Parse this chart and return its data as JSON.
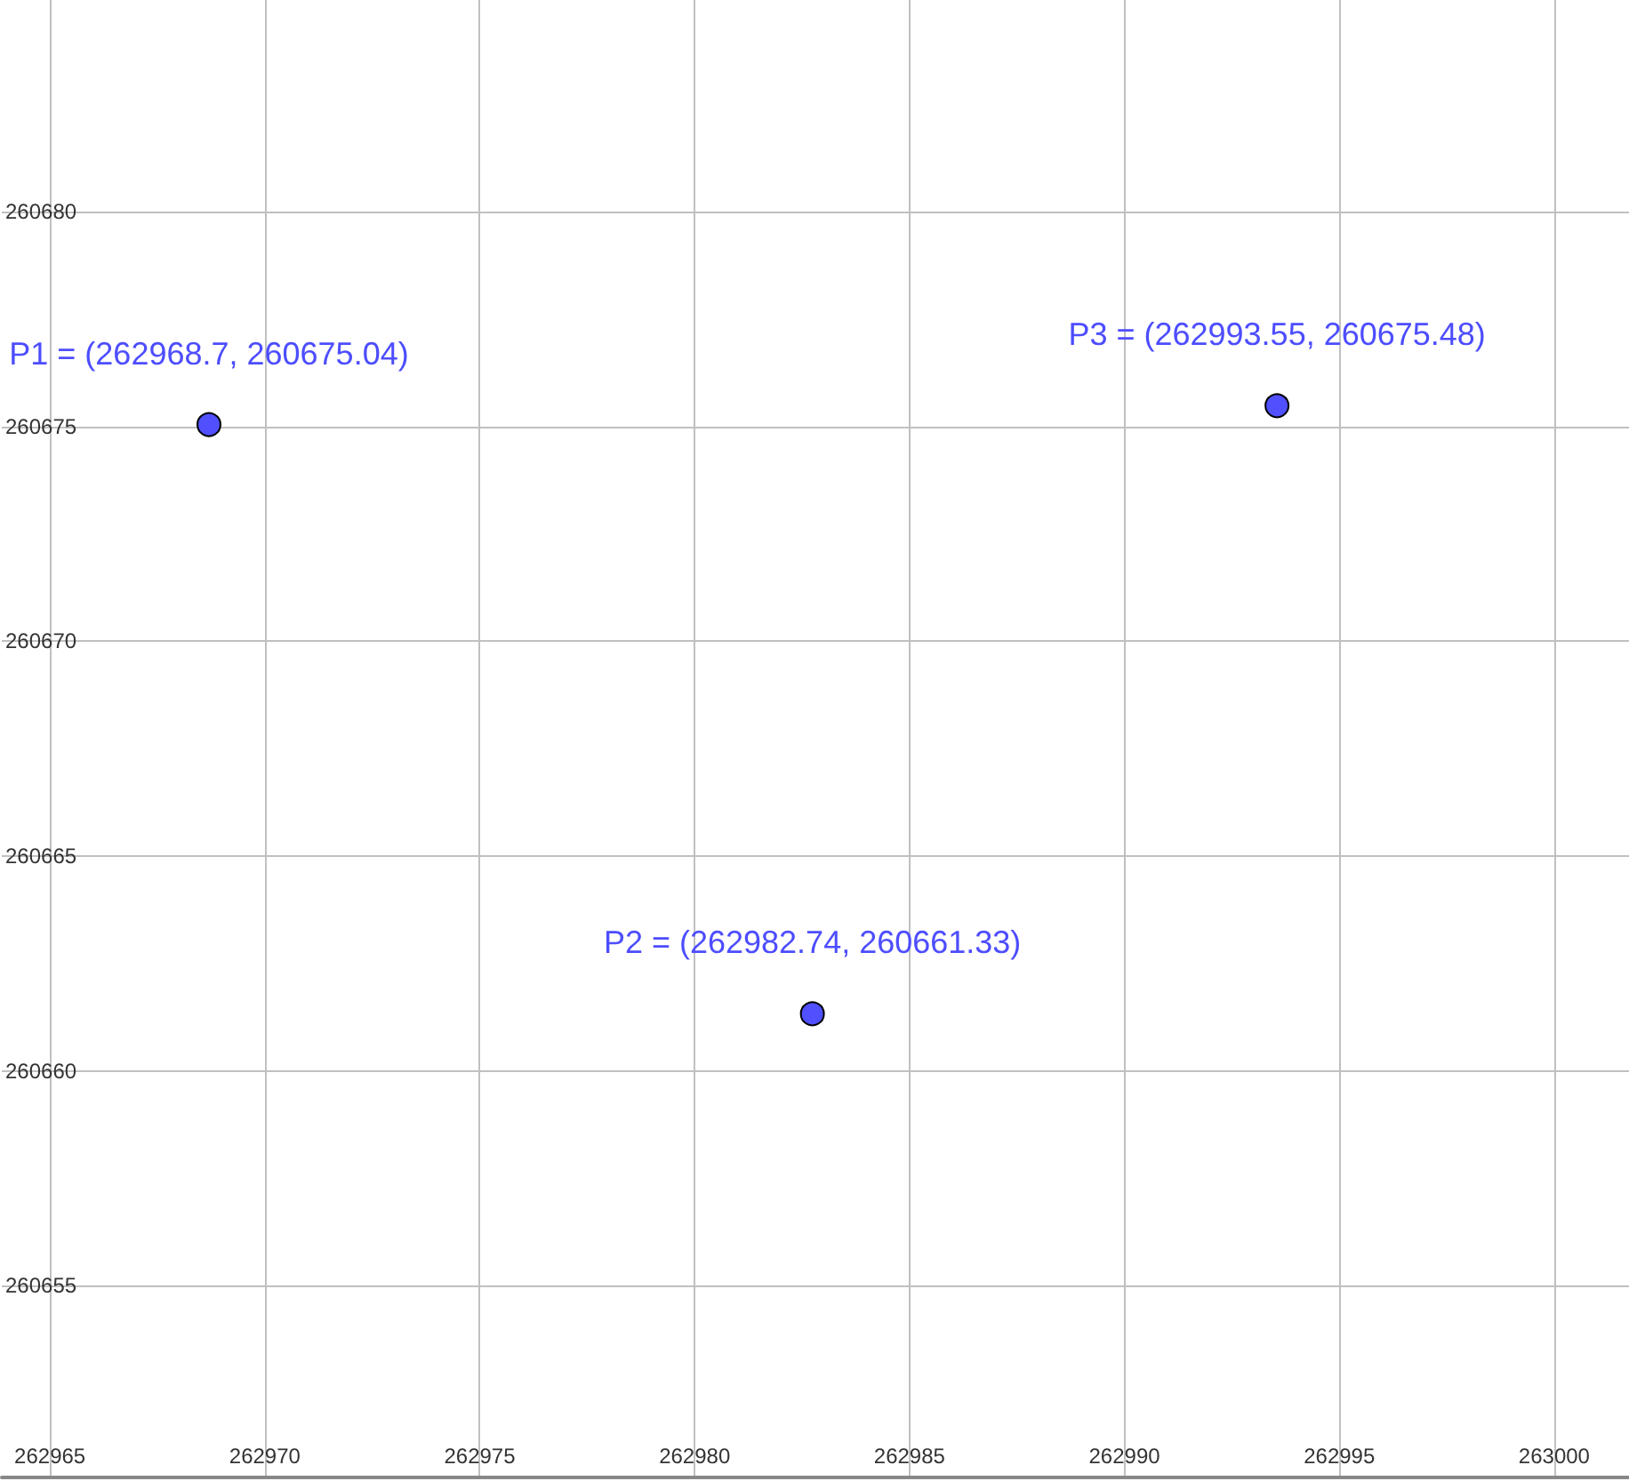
{
  "chart_data": {
    "type": "scatter",
    "x": [
      262968.7,
      262982.74,
      262993.55
    ],
    "values": [
      260675.04,
      260661.33,
      260675.48
    ],
    "color": "#5050ff",
    "value_labels": [
      "P1 = (262968.7, 260675.04)",
      "P2 = (262982.74, 260661.33)",
      "P3 = (262993.55, 260675.48)"
    ],
    "xlim": [
      262963.88,
      263001.74
    ],
    "ylim": [
      260650.54,
      260684.92
    ],
    "xticks": [
      262965,
      262970,
      262975,
      262980,
      262985,
      262990,
      262995,
      263000
    ],
    "yticks": [
      260655,
      260660,
      260665,
      260670,
      260675,
      260680
    ],
    "grid": true,
    "marker": "circle"
  }
}
